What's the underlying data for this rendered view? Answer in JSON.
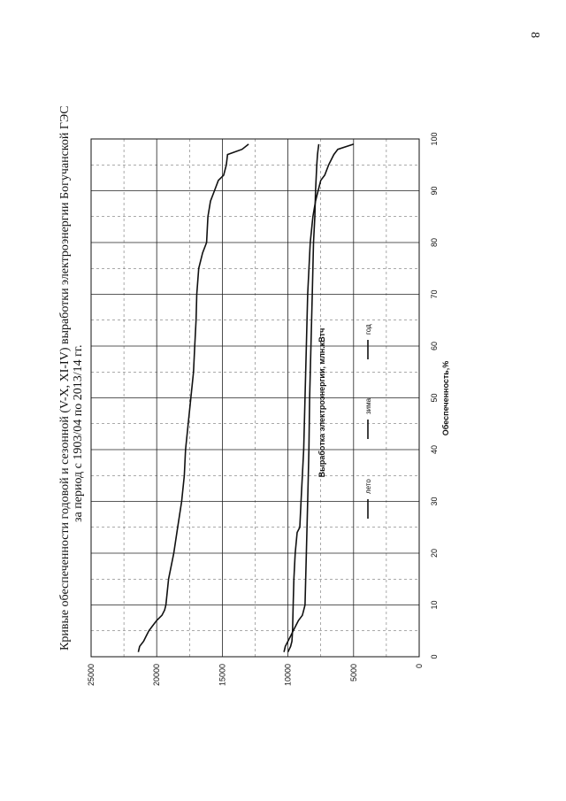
{
  "page_number": "8",
  "chart_data": {
    "type": "line",
    "title_line1": "Кривые обеспеченности годовой и сезонной (V-X, XI-IV) выработки электроэнергии Богучанской ГЭС",
    "title_line2": "за период с 1903/04 по 2013/14 гг.",
    "xlabel": "Обеспеченность,%",
    "ylabel": "Выработка электроэнергии, млн.кВтч",
    "xlim": [
      0,
      100
    ],
    "ylim": [
      0,
      25000
    ],
    "x_ticks": [
      "0",
      "10",
      "20",
      "30",
      "40",
      "50",
      "60",
      "70",
      "80",
      "90",
      "100"
    ],
    "y_ticks": [
      "0",
      "5000",
      "10000",
      "15000",
      "20000",
      "25000"
    ],
    "grid": true,
    "legend_position": "inside-lower-right",
    "series": [
      {
        "name": "лето",
        "color": "#111111",
        "points": [
          [
            0.9,
            10300
          ],
          [
            2,
            10200
          ],
          [
            3,
            10000
          ],
          [
            4,
            9800
          ],
          [
            5,
            9600
          ],
          [
            6,
            9400
          ],
          [
            7,
            9200
          ],
          [
            8,
            8900
          ],
          [
            9,
            8800
          ],
          [
            10,
            8700
          ],
          [
            20,
            8600
          ],
          [
            30,
            8500
          ],
          [
            40,
            8400
          ],
          [
            50,
            8350
          ],
          [
            60,
            8250
          ],
          [
            70,
            8150
          ],
          [
            80,
            8050
          ],
          [
            85,
            7950
          ],
          [
            90,
            7900
          ],
          [
            95,
            7800
          ],
          [
            97,
            7750
          ],
          [
            98,
            7700
          ],
          [
            99,
            7650
          ]
        ]
      },
      {
        "name": "зима",
        "color": "#111111",
        "points": [
          [
            0.9,
            10000
          ],
          [
            2,
            9800
          ],
          [
            3,
            9700
          ],
          [
            5,
            9650
          ],
          [
            10,
            9600
          ],
          [
            15,
            9550
          ],
          [
            20,
            9450
          ],
          [
            24,
            9300
          ],
          [
            25,
            9100
          ],
          [
            30,
            9000
          ],
          [
            40,
            8800
          ],
          [
            50,
            8700
          ],
          [
            60,
            8600
          ],
          [
            70,
            8500
          ],
          [
            80,
            8300
          ],
          [
            85,
            8100
          ],
          [
            88,
            7900
          ],
          [
            90,
            7700
          ],
          [
            92,
            7500
          ],
          [
            93,
            7200
          ],
          [
            95,
            6900
          ],
          [
            96,
            6700
          ],
          [
            97,
            6500
          ],
          [
            98,
            6200
          ],
          [
            99,
            5000
          ]
        ]
      },
      {
        "name": "год",
        "color": "#111111",
        "points": [
          [
            0.9,
            21400
          ],
          [
            2,
            21300
          ],
          [
            3,
            21000
          ],
          [
            4,
            20800
          ],
          [
            5,
            20600
          ],
          [
            6,
            20300
          ],
          [
            7,
            20000
          ],
          [
            8,
            19600
          ],
          [
            9,
            19400
          ],
          [
            10,
            19300
          ],
          [
            15,
            19100
          ],
          [
            20,
            18700
          ],
          [
            25,
            18400
          ],
          [
            30,
            18100
          ],
          [
            35,
            17900
          ],
          [
            40,
            17800
          ],
          [
            45,
            17600
          ],
          [
            50,
            17400
          ],
          [
            55,
            17200
          ],
          [
            60,
            17100
          ],
          [
            65,
            17000
          ],
          [
            70,
            16950
          ],
          [
            75,
            16800
          ],
          [
            78,
            16500
          ],
          [
            80,
            16200
          ],
          [
            85,
            16100
          ],
          [
            88,
            15900
          ],
          [
            90,
            15600
          ],
          [
            92,
            15300
          ],
          [
            93,
            14900
          ],
          [
            95,
            14700
          ],
          [
            97,
            14600
          ],
          [
            98,
            13500
          ],
          [
            99,
            13000
          ]
        ]
      }
    ]
  }
}
